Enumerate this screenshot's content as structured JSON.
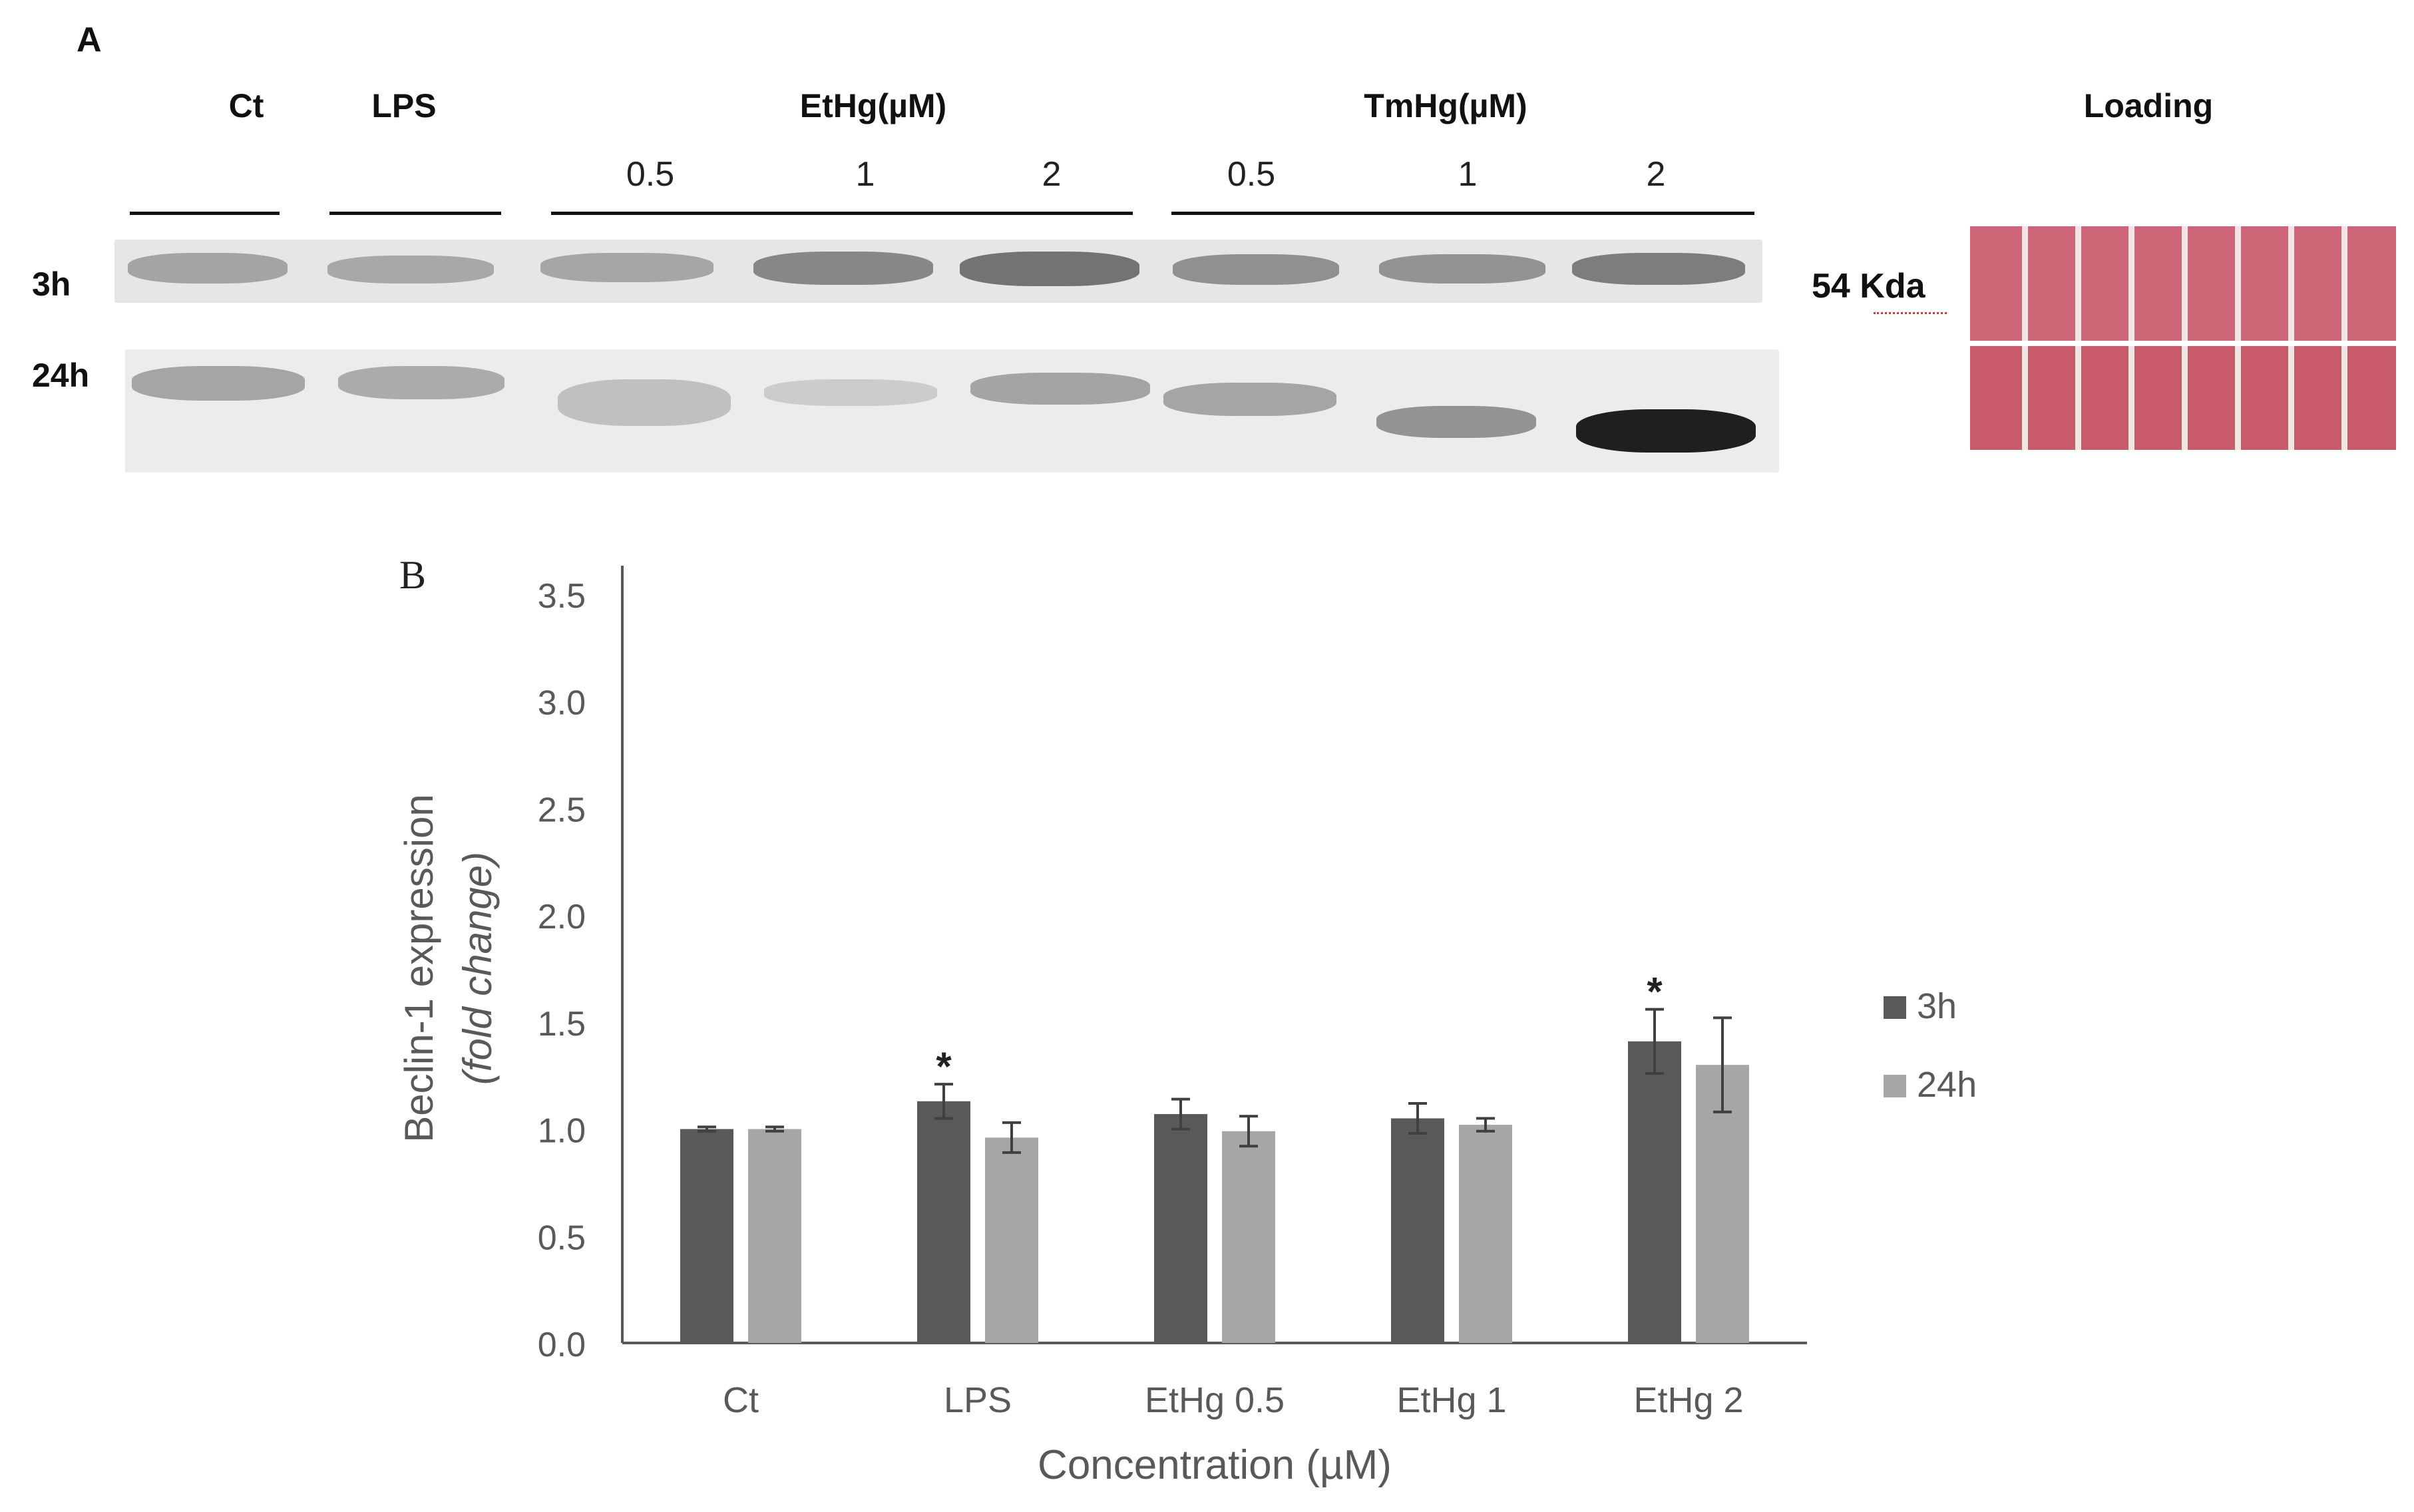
{
  "panel_a": {
    "label": "A",
    "group_labels": [
      "Ct",
      "LPS",
      "EtHg(µM)",
      "TmHg(µM)"
    ],
    "dose_labels": [
      "0.5",
      "1",
      "2",
      "0.5",
      "1",
      "2"
    ],
    "row_labels": [
      "3h",
      "24h"
    ],
    "marker_label": "54 Kda",
    "loading_label": "Loading"
  },
  "panel_b": {
    "label": "B"
  },
  "chart_data": {
    "type": "bar",
    "categories": [
      "Ct",
      "LPS",
      "EtHg 0.5",
      "EtHg 1",
      "EtHg 2"
    ],
    "series": [
      {
        "name": "3h",
        "color": "#595959",
        "values": [
          1.0,
          1.13,
          1.07,
          1.05,
          1.41
        ],
        "errors": [
          0.01,
          0.08,
          0.07,
          0.07,
          0.15
        ],
        "significance": [
          "",
          "*",
          "",
          "",
          "*"
        ]
      },
      {
        "name": "24h",
        "color": "#a6a6a6",
        "values": [
          1.0,
          0.96,
          0.99,
          1.02,
          1.3
        ],
        "errors": [
          0.01,
          0.07,
          0.07,
          0.03,
          0.22
        ],
        "significance": [
          "",
          "",
          "",
          "",
          ""
        ]
      }
    ],
    "ylim": [
      0,
      3.5
    ],
    "yticks": [
      "0.0",
      "0.5",
      "1.0",
      "1.5",
      "2.0",
      "2.5",
      "3.0",
      "3.5"
    ],
    "ylabel_main": "Beclin-1 expression",
    "ylabel_sub": "(fold change)",
    "xlabel": "Concentration (µM)",
    "legend_position": "right",
    "grid": false
  }
}
